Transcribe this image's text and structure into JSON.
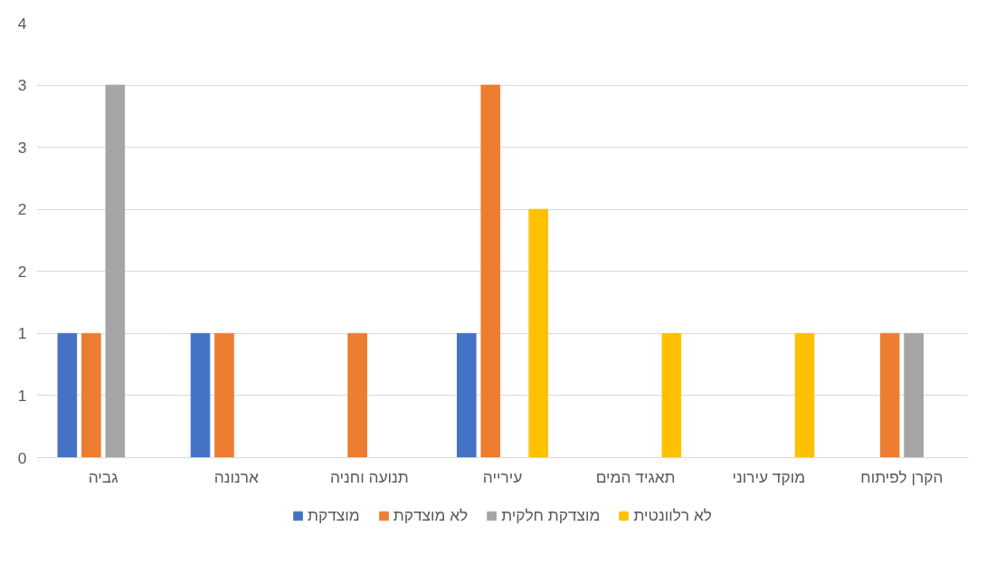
{
  "chart_data": {
    "type": "bar",
    "categories": [
      "גביה",
      "ארנונה",
      "תנועה וחניה",
      "עירייה",
      "תאגיד המים",
      "מוקד עירוני",
      "הקרן לפיתוח"
    ],
    "series": [
      {
        "name": "מוצדקת",
        "color": "#4472c4",
        "values": [
          1,
          1,
          null,
          1,
          null,
          null,
          null
        ]
      },
      {
        "name": "לא מוצדקת",
        "color": "#ed7d31",
        "values": [
          1,
          1,
          1,
          3,
          null,
          null,
          1
        ]
      },
      {
        "name": "מוצדקת חלקית",
        "color": "#a5a5a5",
        "values": [
          3,
          null,
          null,
          null,
          null,
          null,
          1
        ]
      },
      {
        "name": "לא רלוונטית",
        "color": "#ffc000",
        "values": [
          null,
          null,
          null,
          2,
          1,
          1,
          null
        ]
      }
    ],
    "ylim": [
      0,
      3.5
    ],
    "yticks": [
      0,
      {
        "value": 0.5,
        "label": "1"
      },
      1,
      {
        "value": 1.5,
        "label": "2"
      },
      2,
      {
        "value": 2.5,
        "label": "3"
      },
      3,
      {
        "value": 3.5,
        "label": "4"
      }
    ],
    "grid": "y",
    "legend": "bottom"
  }
}
